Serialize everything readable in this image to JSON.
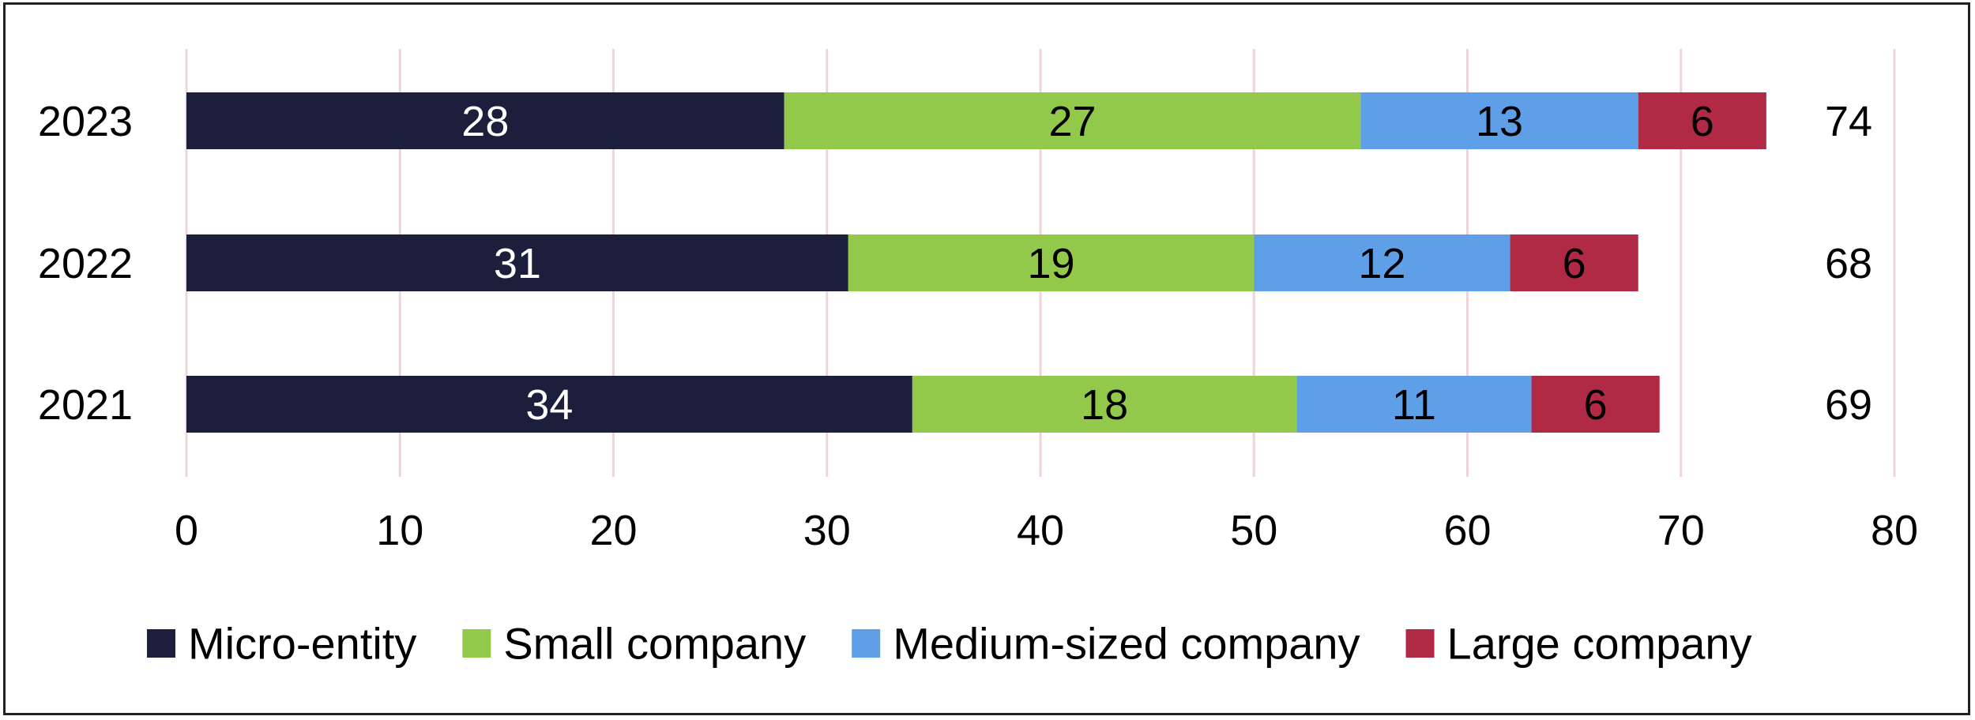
{
  "chart_data": {
    "type": "bar",
    "orientation": "horizontal",
    "stacked": true,
    "title": "",
    "xlabel": "",
    "ylabel": "",
    "categories": [
      "2023",
      "2022",
      "2021"
    ],
    "series": [
      {
        "name": "Micro-entity",
        "values": [
          28,
          31,
          34
        ],
        "color": "#1c1f3b",
        "label_color": "#ffffff"
      },
      {
        "name": "Small company",
        "values": [
          27,
          19,
          18
        ],
        "color": "#92c94a",
        "label_color": "#000000"
      },
      {
        "name": "Medium-sized company",
        "values": [
          13,
          12,
          11
        ],
        "color": "#5f9fe8",
        "label_color": "#000000"
      },
      {
        "name": "Large company",
        "values": [
          6,
          6,
          6
        ],
        "color": "#b02a45",
        "label_color": "#000000"
      }
    ],
    "totals": [
      "74",
      "68",
      "69"
    ],
    "xlim": [
      0,
      80
    ],
    "xticks": [
      "0",
      "10",
      "20",
      "30",
      "40",
      "50",
      "60",
      "70",
      "80"
    ],
    "grid": "vertical",
    "grid_color": "#f0d4db",
    "legend_position": "bottom"
  }
}
